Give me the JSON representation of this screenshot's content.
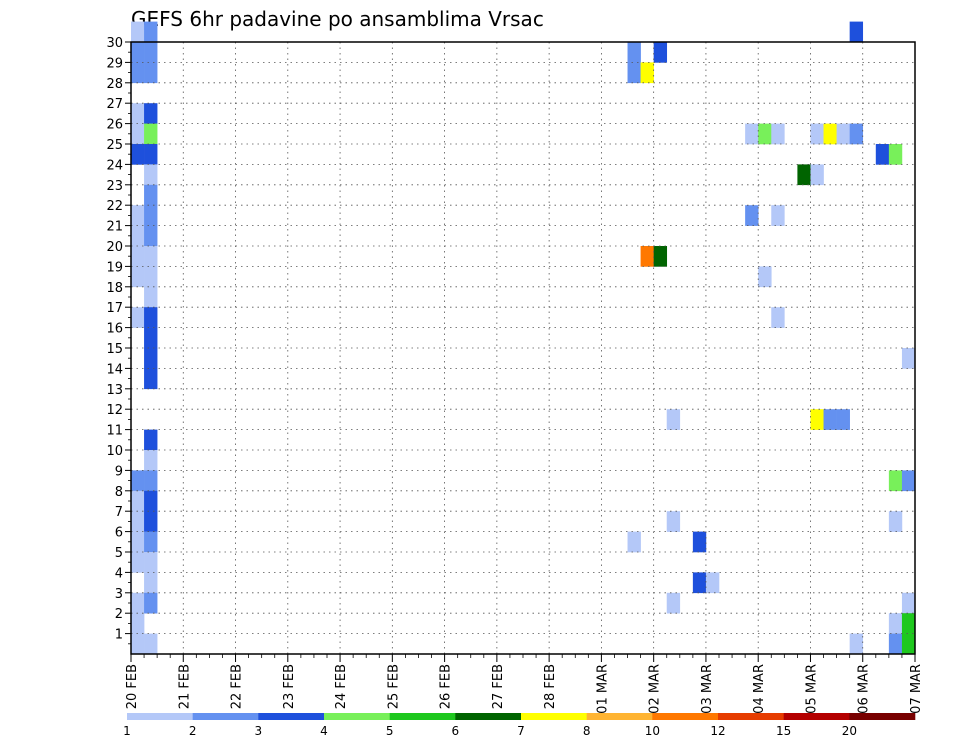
{
  "chart_data": {
    "type": "heatmap",
    "title": "GEFS 6hr padavine po ansamblima Vrsac",
    "xlabel": "",
    "ylabel": "",
    "x_tick_labels": [
      "20 FEB",
      "21 FEB",
      "22 FEB",
      "23 FEB",
      "24 FEB",
      "25 FEB",
      "26 FEB",
      "27 FEB",
      "28 FEB",
      "01 MAR",
      "02 MAR",
      "03 MAR",
      "04 MAR",
      "05 MAR",
      "06 MAR",
      "07 MAR"
    ],
    "y_tick_labels": [
      1,
      2,
      3,
      4,
      5,
      6,
      7,
      8,
      9,
      10,
      11,
      12,
      13,
      14,
      15,
      16,
      17,
      18,
      19,
      20,
      21,
      22,
      23,
      24,
      25,
      26,
      27,
      28,
      29,
      30
    ],
    "x_steps_per_day": 4,
    "x_range_steps": [
      0,
      60
    ],
    "y_range": [
      0,
      30
    ],
    "grid": true,
    "colorbar": {
      "labels": [
        "1",
        "2",
        "3",
        "4",
        "5",
        "6",
        "7",
        "8",
        "10",
        "12",
        "15",
        "20"
      ],
      "colors": [
        "#b4c8f8",
        "#6491f0",
        "#1e50dc",
        "#78f05a",
        "#1ec81e",
        "#006400",
        "#ffff00",
        "#ffb432",
        "#ff7800",
        "#e63c00",
        "#b40000",
        "#780000"
      ]
    },
    "cells": [
      {
        "m": 30,
        "t": 0,
        "v": 1.5
      },
      {
        "m": 30,
        "t": 1,
        "v": 2.5
      },
      {
        "m": 29,
        "t": 0,
        "v": 2.5
      },
      {
        "m": 29,
        "t": 1,
        "v": 2.5
      },
      {
        "m": 28,
        "t": 0,
        "v": 2.5
      },
      {
        "m": 28,
        "t": 1,
        "v": 2.5
      },
      {
        "m": 26,
        "t": 0,
        "v": 1.5
      },
      {
        "m": 26,
        "t": 1,
        "v": 3.5
      },
      {
        "m": 25,
        "t": 0,
        "v": 1.5
      },
      {
        "m": 25,
        "t": 1,
        "v": 4.5
      },
      {
        "m": 24,
        "t": 0,
        "v": 3.5
      },
      {
        "m": 24,
        "t": 1,
        "v": 3.5
      },
      {
        "m": 23,
        "t": 1,
        "v": 1.5
      },
      {
        "m": 22,
        "t": 1,
        "v": 2.5
      },
      {
        "m": 21,
        "t": 0,
        "v": 1.5
      },
      {
        "m": 21,
        "t": 1,
        "v": 2.5
      },
      {
        "m": 20,
        "t": 0,
        "v": 1.5
      },
      {
        "m": 20,
        "t": 1,
        "v": 2.5
      },
      {
        "m": 19,
        "t": 0,
        "v": 1.5
      },
      {
        "m": 19,
        "t": 1,
        "v": 1.5
      },
      {
        "m": 18,
        "t": 0,
        "v": 1.5
      },
      {
        "m": 18,
        "t": 1,
        "v": 1.5
      },
      {
        "m": 17,
        "t": 1,
        "v": 1.5
      },
      {
        "m": 16,
        "t": 0,
        "v": 1.5
      },
      {
        "m": 16,
        "t": 1,
        "v": 3.5
      },
      {
        "m": 15,
        "t": 1,
        "v": 3.5
      },
      {
        "m": 14,
        "t": 1,
        "v": 3.5
      },
      {
        "m": 13,
        "t": 1,
        "v": 3.5
      },
      {
        "m": 10,
        "t": 1,
        "v": 3.5
      },
      {
        "m": 9,
        "t": 1,
        "v": 1.5
      },
      {
        "m": 8,
        "t": 0,
        "v": 2.5
      },
      {
        "m": 8,
        "t": 1,
        "v": 2.5
      },
      {
        "m": 7,
        "t": 0,
        "v": 1.5
      },
      {
        "m": 7,
        "t": 1,
        "v": 3.5
      },
      {
        "m": 6,
        "t": 0,
        "v": 1.5
      },
      {
        "m": 6,
        "t": 1,
        "v": 3.5
      },
      {
        "m": 5,
        "t": 0,
        "v": 1.5
      },
      {
        "m": 5,
        "t": 1,
        "v": 2.5
      },
      {
        "m": 4,
        "t": 0,
        "v": 1.5
      },
      {
        "m": 4,
        "t": 1,
        "v": 1.5
      },
      {
        "m": 3,
        "t": 1,
        "v": 1.5
      },
      {
        "m": 2,
        "t": 0,
        "v": 1.5
      },
      {
        "m": 2,
        "t": 1,
        "v": 2.5
      },
      {
        "m": 1,
        "t": 0,
        "v": 1.5
      },
      {
        "m": 0,
        "t": 0,
        "v": 1.5
      },
      {
        "m": 0,
        "t": 1,
        "v": 1.5
      },
      {
        "m": 29,
        "t": 38,
        "v": 2.5
      },
      {
        "m": 29,
        "t": 40,
        "v": 3.5
      },
      {
        "m": 28,
        "t": 38,
        "v": 2.5
      },
      {
        "m": 28,
        "t": 39,
        "v": 7.5
      },
      {
        "m": 19,
        "t": 39,
        "v": 10.5
      },
      {
        "m": 19,
        "t": 40,
        "v": 6.5
      },
      {
        "m": 11,
        "t": 41,
        "v": 1.5
      },
      {
        "m": 6,
        "t": 41,
        "v": 1.5
      },
      {
        "m": 5,
        "t": 38,
        "v": 1.5
      },
      {
        "m": 5,
        "t": 43,
        "v": 3.5
      },
      {
        "m": 3,
        "t": 43,
        "v": 3.5
      },
      {
        "m": 3,
        "t": 44,
        "v": 1.5
      },
      {
        "m": 2,
        "t": 41,
        "v": 1.5
      },
      {
        "m": 30,
        "t": 55,
        "v": 3.5
      },
      {
        "m": 25,
        "t": 47,
        "v": 1.5
      },
      {
        "m": 25,
        "t": 48,
        "v": 4.5
      },
      {
        "m": 25,
        "t": 49,
        "v": 1.5
      },
      {
        "m": 25,
        "t": 52,
        "v": 1.5
      },
      {
        "m": 25,
        "t": 53,
        "v": 7.5
      },
      {
        "m": 25,
        "t": 54,
        "v": 1.5
      },
      {
        "m": 25,
        "t": 55,
        "v": 2.5
      },
      {
        "m": 24,
        "t": 57,
        "v": 3.5
      },
      {
        "m": 24,
        "t": 58,
        "v": 4.5
      },
      {
        "m": 23,
        "t": 51,
        "v": 6.5
      },
      {
        "m": 23,
        "t": 52,
        "v": 1.5
      },
      {
        "m": 21,
        "t": 47,
        "v": 2.5
      },
      {
        "m": 21,
        "t": 49,
        "v": 1.5
      },
      {
        "m": 18,
        "t": 48,
        "v": 1.5
      },
      {
        "m": 16,
        "t": 49,
        "v": 1.5
      },
      {
        "m": 14,
        "t": 59,
        "v": 1.5
      },
      {
        "m": 11,
        "t": 52,
        "v": 7.5
      },
      {
        "m": 11,
        "t": 53,
        "v": 2.5
      },
      {
        "m": 11,
        "t": 54,
        "v": 2.5
      },
      {
        "m": 8,
        "t": 58,
        "v": 4.5
      },
      {
        "m": 8,
        "t": 59,
        "v": 2.5
      },
      {
        "m": 6,
        "t": 58,
        "v": 1.5
      },
      {
        "m": 2,
        "t": 59,
        "v": 1.5
      },
      {
        "m": 1,
        "t": 58,
        "v": 1.5
      },
      {
        "m": 1,
        "t": 59,
        "v": 5.5
      },
      {
        "m": 0,
        "t": 55,
        "v": 1.5
      },
      {
        "m": 0,
        "t": 58,
        "v": 2.5
      },
      {
        "m": 0,
        "t": 59,
        "v": 5.5
      }
    ]
  }
}
